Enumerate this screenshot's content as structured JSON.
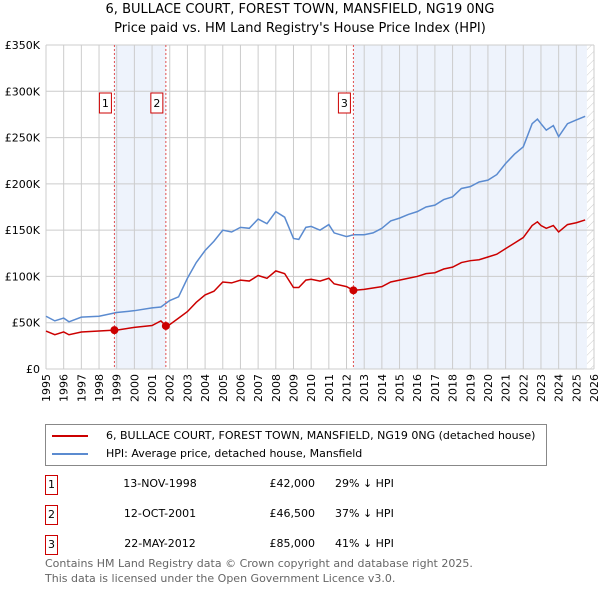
{
  "header": {
    "title": "6, BULLACE COURT, FOREST TOWN, MANSFIELD, NG19 0NG",
    "subtitle": "Price paid vs. HM Land Registry's House Price Index (HPI)"
  },
  "colors": {
    "property": "#cc0000",
    "hpi": "#5b8bd0",
    "shade": "#eef3fc",
    "marker_border": "#cc0000"
  },
  "chart_data": {
    "type": "line",
    "title": "6, BULLACE COURT, FOREST TOWN, MANSFIELD, NG19 0NG — Price paid vs. HM Land Registry's House Price Index (HPI)",
    "xlim": [
      1995,
      2026
    ],
    "ylim": [
      0,
      350000
    ],
    "x_ticks": [
      "1995",
      "1996",
      "1997",
      "1998",
      "1999",
      "2000",
      "2001",
      "2002",
      "2003",
      "2004",
      "2005",
      "2006",
      "2007",
      "2008",
      "2009",
      "2010",
      "2011",
      "2012",
      "2013",
      "2014",
      "2015",
      "2016",
      "2017",
      "2018",
      "2019",
      "2020",
      "2021",
      "2022",
      "2023",
      "2024",
      "2025",
      "2026"
    ],
    "y_ticks": [
      {
        "v": 0,
        "label": "£0"
      },
      {
        "v": 50000,
        "label": "£50K"
      },
      {
        "v": 100000,
        "label": "£100K"
      },
      {
        "v": 150000,
        "label": "£150K"
      },
      {
        "v": 200000,
        "label": "£200K"
      },
      {
        "v": 250000,
        "label": "£250K"
      },
      {
        "v": 300000,
        "label": "£300K"
      },
      {
        "v": 350000,
        "label": "£350K"
      }
    ],
    "grid": true,
    "shaded_ranges": [
      [
        1998.87,
        2001.78
      ],
      [
        2012.39,
        2025.6
      ]
    ],
    "hatched_from": 2025.6,
    "series": [
      {
        "name": "6, BULLACE COURT, FOREST TOWN, MANSFIELD, NG19 0NG (detached house)",
        "color": "#cc0000",
        "points": [
          [
            1995,
            41
          ],
          [
            1995.5,
            37
          ],
          [
            1996,
            40
          ],
          [
            1996.3,
            37
          ],
          [
            1997,
            40
          ],
          [
            1998,
            41
          ],
          [
            1998.87,
            42
          ],
          [
            1999,
            42
          ],
          [
            2000,
            45
          ],
          [
            2001,
            47
          ],
          [
            2001.5,
            52
          ],
          [
            2001.78,
            46.5
          ],
          [
            2002,
            48
          ],
          [
            2002.5,
            55
          ],
          [
            2003,
            62
          ],
          [
            2003.5,
            72
          ],
          [
            2004,
            80
          ],
          [
            2004.5,
            84
          ],
          [
            2005,
            94
          ],
          [
            2005.5,
            93
          ],
          [
            2006,
            96
          ],
          [
            2006.5,
            95
          ],
          [
            2007,
            101
          ],
          [
            2007.5,
            98
          ],
          [
            2008,
            106
          ],
          [
            2008.5,
            103
          ],
          [
            2009,
            88
          ],
          [
            2009.3,
            88
          ],
          [
            2009.7,
            96
          ],
          [
            2010,
            97
          ],
          [
            2010.5,
            95
          ],
          [
            2011,
            98
          ],
          [
            2011.3,
            92
          ],
          [
            2012,
            89
          ],
          [
            2012.39,
            85
          ],
          [
            2013,
            86
          ],
          [
            2014,
            89
          ],
          [
            2014.5,
            94
          ],
          [
            2015,
            96
          ],
          [
            2015.5,
            98
          ],
          [
            2016,
            100
          ],
          [
            2016.5,
            103
          ],
          [
            2017,
            104
          ],
          [
            2017.5,
            108
          ],
          [
            2018,
            110
          ],
          [
            2018.5,
            115
          ],
          [
            2019,
            117
          ],
          [
            2019.5,
            118
          ],
          [
            2020,
            121
          ],
          [
            2020.5,
            124
          ],
          [
            2021,
            130
          ],
          [
            2021.5,
            136
          ],
          [
            2022,
            142
          ],
          [
            2022.5,
            155
          ],
          [
            2022.8,
            159
          ],
          [
            2023,
            155
          ],
          [
            2023.3,
            152
          ],
          [
            2023.7,
            155
          ],
          [
            2024,
            148
          ],
          [
            2024.5,
            156
          ],
          [
            2025,
            158
          ],
          [
            2025.5,
            161
          ]
        ]
      },
      {
        "name": "HPI: Average price, detached house, Mansfield",
        "color": "#5b8bd0",
        "points": [
          [
            1995,
            57
          ],
          [
            1995.5,
            52
          ],
          [
            1996,
            55
          ],
          [
            1996.3,
            51
          ],
          [
            1997,
            56
          ],
          [
            1998,
            57
          ],
          [
            1999,
            61
          ],
          [
            2000,
            63
          ],
          [
            2001,
            66
          ],
          [
            2001.5,
            67
          ],
          [
            2002,
            74
          ],
          [
            2002.5,
            78
          ],
          [
            2003,
            98
          ],
          [
            2003.5,
            115
          ],
          [
            2004,
            128
          ],
          [
            2004.5,
            138
          ],
          [
            2005,
            150
          ],
          [
            2005.5,
            148
          ],
          [
            2006,
            153
          ],
          [
            2006.5,
            152
          ],
          [
            2007,
            162
          ],
          [
            2007.5,
            157
          ],
          [
            2008,
            170
          ],
          [
            2008.5,
            164
          ],
          [
            2009,
            141
          ],
          [
            2009.3,
            140
          ],
          [
            2009.7,
            153
          ],
          [
            2010,
            154
          ],
          [
            2010.5,
            150
          ],
          [
            2011,
            156
          ],
          [
            2011.3,
            147
          ],
          [
            2012,
            143
          ],
          [
            2012.4,
            145
          ],
          [
            2013,
            145
          ],
          [
            2013.5,
            147
          ],
          [
            2014,
            152
          ],
          [
            2014.5,
            160
          ],
          [
            2015,
            163
          ],
          [
            2015.5,
            167
          ],
          [
            2016,
            170
          ],
          [
            2016.5,
            175
          ],
          [
            2017,
            177
          ],
          [
            2017.5,
            183
          ],
          [
            2018,
            186
          ],
          [
            2018.5,
            195
          ],
          [
            2019,
            197
          ],
          [
            2019.5,
            202
          ],
          [
            2020,
            204
          ],
          [
            2020.5,
            210
          ],
          [
            2021,
            222
          ],
          [
            2021.5,
            232
          ],
          [
            2022,
            240
          ],
          [
            2022.5,
            265
          ],
          [
            2022.8,
            270
          ],
          [
            2023,
            265
          ],
          [
            2023.3,
            258
          ],
          [
            2023.7,
            263
          ],
          [
            2024,
            251
          ],
          [
            2024.5,
            265
          ],
          [
            2025,
            269
          ],
          [
            2025.5,
            273
          ]
        ]
      }
    ],
    "y_units": "thousands GBP (£K)",
    "sales": [
      {
        "id": "1",
        "x": 1998.87,
        "y": 42
      },
      {
        "id": "2",
        "x": 2001.78,
        "y": 46.5
      },
      {
        "id": "3",
        "x": 2012.39,
        "y": 85
      }
    ]
  },
  "legend": [
    {
      "label": "6, BULLACE COURT, FOREST TOWN, MANSFIELD, NG19 0NG (detached house)"
    },
    {
      "label": "HPI: Average price, detached house, Mansfield"
    }
  ],
  "transactions": [
    {
      "num": "1",
      "date": "13-NOV-1998",
      "price": "£42,000",
      "hpi": "29% ↓ HPI"
    },
    {
      "num": "2",
      "date": "12-OCT-2001",
      "price": "£46,500",
      "hpi": "37% ↓ HPI"
    },
    {
      "num": "3",
      "date": "22-MAY-2012",
      "price": "£85,000",
      "hpi": "41% ↓ HPI"
    }
  ],
  "footer": {
    "line1": "Contains HM Land Registry data © Crown copyright and database right 2025.",
    "line2": "This data is licensed under the Open Government Licence v3.0."
  }
}
